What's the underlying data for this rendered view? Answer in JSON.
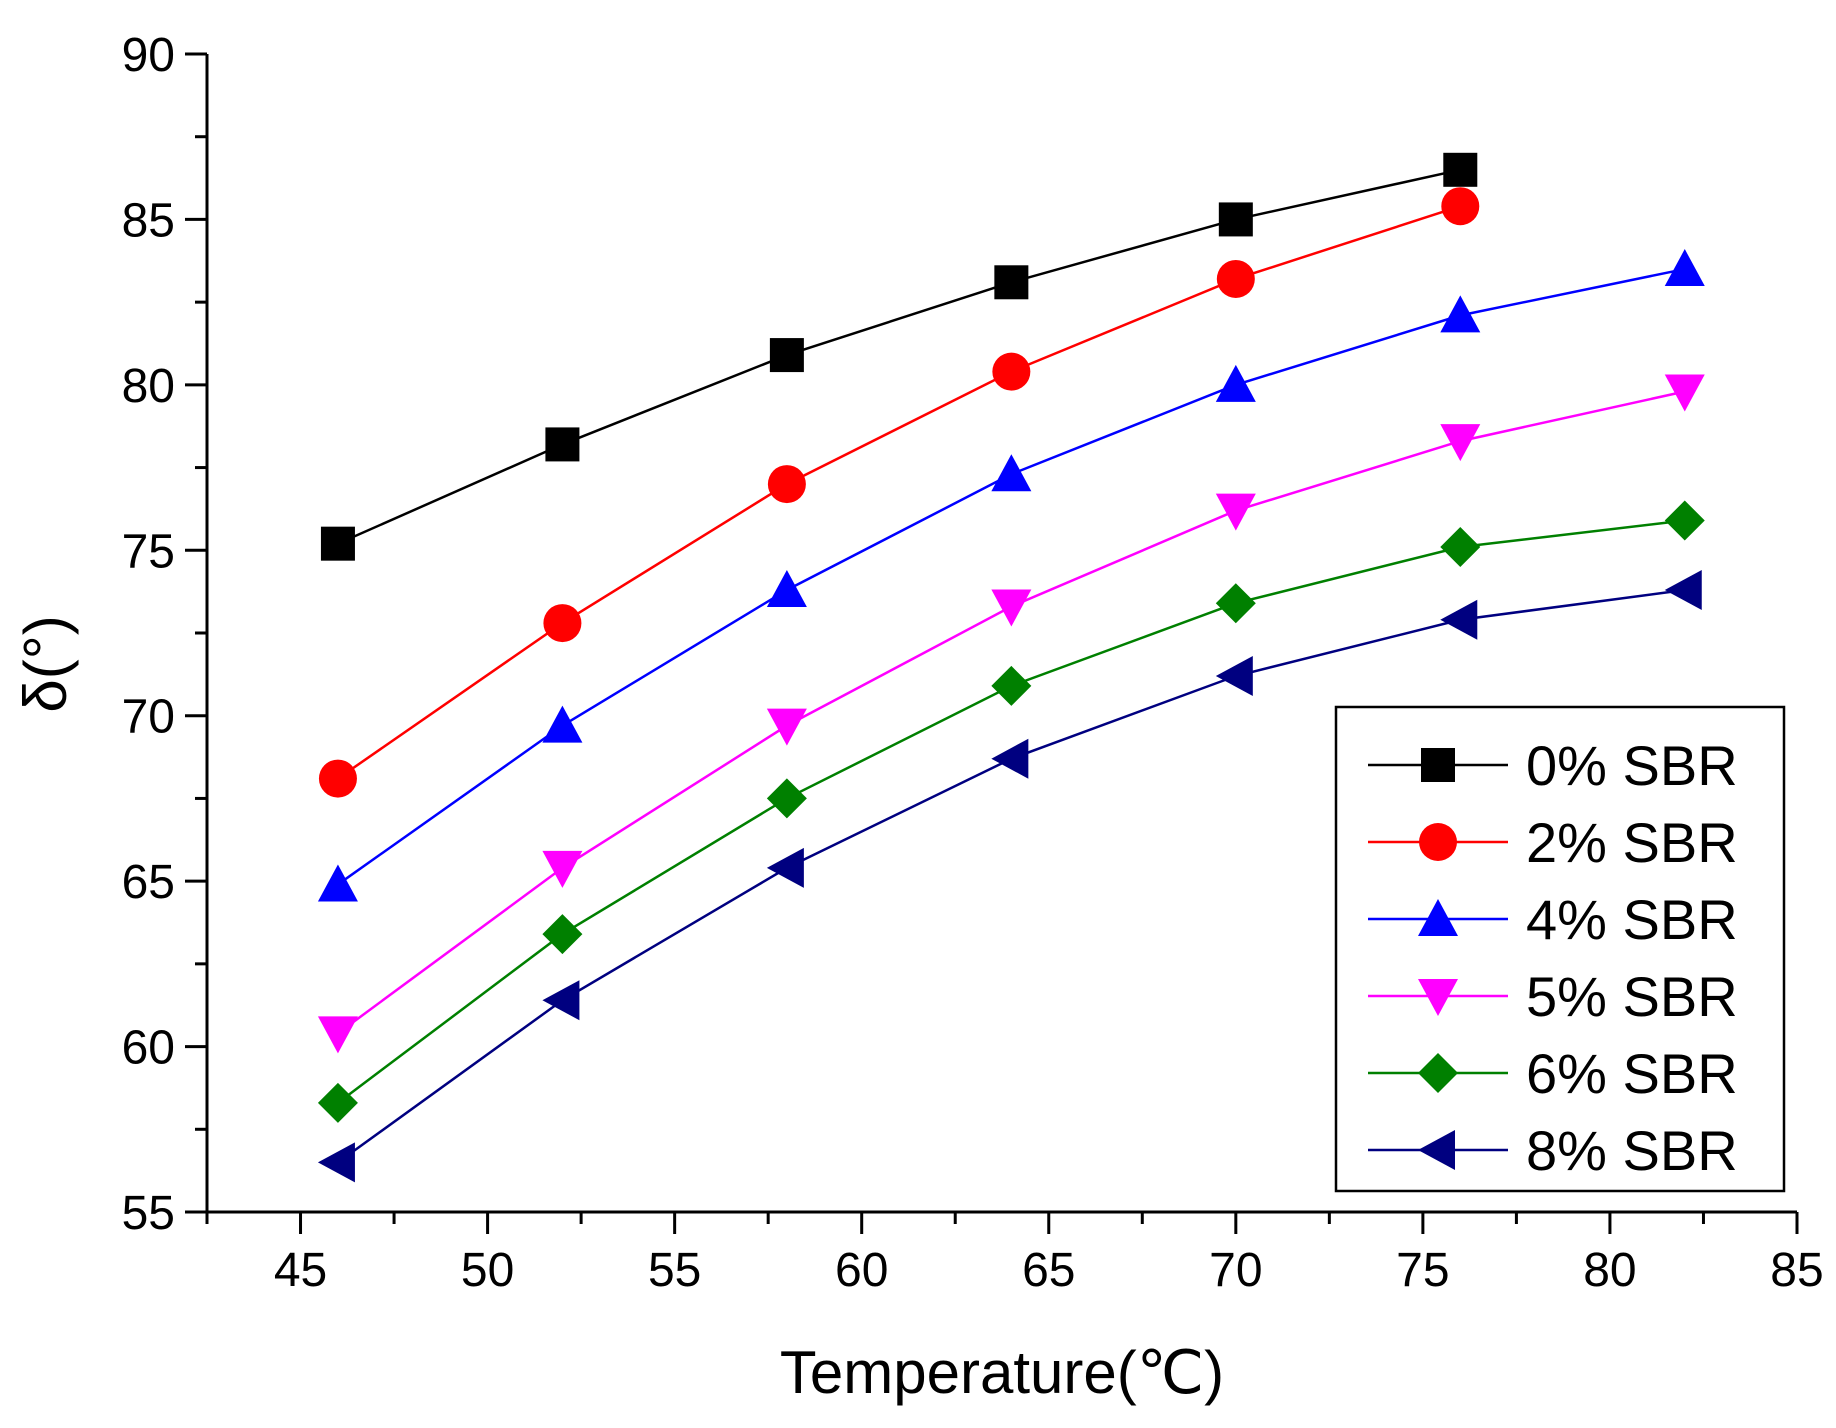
{
  "chart_data": {
    "type": "line",
    "title": "",
    "xlabel": "Temperature(℃)",
    "ylabel": "δ(°)",
    "xlim": [
      42.5,
      85
    ],
    "ylim": [
      55,
      90
    ],
    "xticks": [
      45,
      50,
      55,
      60,
      65,
      70,
      75,
      80,
      85
    ],
    "yticks": [
      55,
      60,
      65,
      70,
      75,
      80,
      85,
      90
    ],
    "xtick_labels": [
      "45",
      "50",
      "55",
      "60",
      "65",
      "70",
      "75",
      "80",
      "85"
    ],
    "ytick_labels": [
      "55",
      "60",
      "65",
      "70",
      "75",
      "80",
      "85",
      "90"
    ],
    "grid": false,
    "legend_position": "bottom-right",
    "series": [
      {
        "name": "0% SBR",
        "color": "#000000",
        "marker": "square",
        "x": [
          46,
          52,
          58,
          64,
          70,
          76
        ],
        "y": [
          75.2,
          78.2,
          80.9,
          83.1,
          85.0,
          86.5
        ]
      },
      {
        "name": "2% SBR",
        "color": "#ff0000",
        "marker": "circle",
        "x": [
          46,
          52,
          58,
          64,
          70,
          76
        ],
        "y": [
          68.1,
          72.8,
          77.0,
          80.4,
          83.2,
          85.4
        ]
      },
      {
        "name": "4% SBR",
        "color": "#0000ff",
        "marker": "triangle-up",
        "x": [
          46,
          52,
          58,
          64,
          70,
          76,
          82
        ],
        "y": [
          64.9,
          69.7,
          73.8,
          77.3,
          80.0,
          82.1,
          83.5
        ]
      },
      {
        "name": "5% SBR",
        "color": "#ff00ff",
        "marker": "triangle-down",
        "x": [
          46,
          52,
          58,
          64,
          70,
          76,
          82
        ],
        "y": [
          60.4,
          65.4,
          69.7,
          73.3,
          76.2,
          78.3,
          79.8
        ]
      },
      {
        "name": "6% SBR",
        "color": "#008000",
        "marker": "diamond",
        "x": [
          46,
          52,
          58,
          64,
          70,
          76,
          82
        ],
        "y": [
          58.3,
          63.4,
          67.5,
          70.9,
          73.4,
          75.1,
          75.9
        ]
      },
      {
        "name": "8% SBR",
        "color": "#000080",
        "marker": "triangle-left",
        "x": [
          46,
          52,
          58,
          64,
          70,
          76,
          82
        ],
        "y": [
          56.5,
          61.4,
          65.4,
          68.7,
          71.2,
          72.9,
          73.8
        ]
      }
    ]
  }
}
